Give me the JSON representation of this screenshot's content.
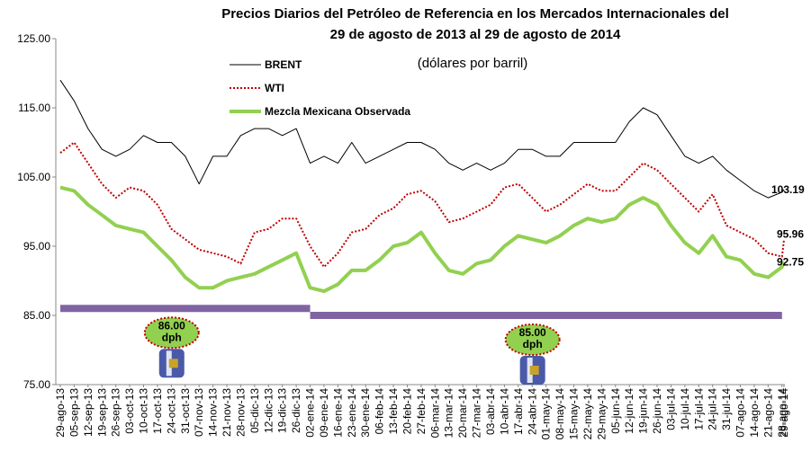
{
  "chart_data": {
    "type": "line",
    "title": [
      "Precios Diarios del Petróleo de Referencia en los Mercados Internacionales del",
      "29 de agosto de 2013 al 29 de agosto de 2014"
    ],
    "subtitle": "(dólares por barril)",
    "x": [
      "29-ago-13",
      "05-sep-13",
      "12-sep-13",
      "19-sep-13",
      "26-sep-13",
      "03-oct-13",
      "10-oct-13",
      "17-oct-13",
      "24-oct-13",
      "31-oct-13",
      "07-nov-13",
      "14-nov-13",
      "21-nov-13",
      "28-nov-13",
      "05-dic-13",
      "12-dic-13",
      "19-dic-13",
      "26-dic-13",
      "02-ene-14",
      "09-ene-14",
      "16-ene-14",
      "23-ene-14",
      "30-ene-14",
      "06-feb-14",
      "13-feb-14",
      "20-feb-14",
      "27-feb-14",
      "06-mar-14",
      "13-mar-14",
      "20-mar-14",
      "27-mar-14",
      "03-abr-14",
      "10-abr-14",
      "17-abr-14",
      "24-abr-14",
      "01-may-14",
      "08-may-14",
      "15-may-14",
      "22-may-14",
      "29-may-14",
      "05-jun-14",
      "12-jun-14",
      "19-jun-14",
      "26-jun-14",
      "03-jul-14",
      "10-jul-14",
      "17-jul-14",
      "24-jul-14",
      "31-jul-14",
      "07-ago-14",
      "14-ago-14",
      "21-ago-14",
      "28-ago-14",
      "29-ago-14"
    ],
    "series": [
      {
        "name": "BRENT",
        "color": "#000000",
        "width": 1,
        "dash": false,
        "values": [
          119,
          116,
          112,
          109,
          108,
          109,
          111,
          110,
          110,
          108,
          104,
          108,
          108,
          111,
          112,
          112,
          111,
          112,
          107,
          108,
          107,
          110,
          107,
          108,
          109,
          110,
          110,
          109,
          107,
          106,
          107,
          106,
          107,
          109,
          109,
          108,
          108,
          110,
          110,
          110,
          110,
          113,
          115,
          114,
          111,
          108,
          107,
          108,
          106,
          104.5,
          103,
          102,
          102.8,
          103.19
        ]
      },
      {
        "name": "WTI",
        "color": "#c00000",
        "width": 2,
        "dash": true,
        "values": [
          108.5,
          110,
          107,
          104,
          102,
          103.5,
          103,
          101,
          97.5,
          96,
          94.5,
          94,
          93.5,
          92.5,
          97,
          97.5,
          99,
          99,
          95,
          92,
          94,
          97,
          97.5,
          99.5,
          100.5,
          102.5,
          103,
          101.5,
          98.5,
          99,
          100,
          101,
          103.5,
          104,
          102,
          100,
          101,
          102.5,
          104,
          103,
          103,
          105,
          107,
          106,
          104,
          102,
          100,
          102.5,
          98,
          97,
          96,
          94,
          93.5,
          95.96
        ]
      },
      {
        "name": "Mezcla Mexicana Observada",
        "color": "#92d050",
        "width": 4,
        "dash": false,
        "values": [
          103.5,
          103,
          101,
          99.5,
          98,
          97.5,
          97,
          95,
          93,
          90.5,
          89,
          89,
          90,
          90.5,
          91,
          92,
          93,
          94,
          89,
          88.5,
          89.5,
          91.5,
          91.5,
          93,
          95,
          95.5,
          97,
          94,
          91.5,
          91,
          92.5,
          93,
          95,
          96.5,
          96,
          95.5,
          96.5,
          98,
          99,
          98.5,
          99,
          101,
          102,
          101,
          98,
          95.5,
          94,
          96.5,
          93.5,
          93,
          91,
          90.5,
          92,
          92.75
        ]
      }
    ],
    "reference": {
      "color": "#8064a2",
      "segments": [
        {
          "from": "29-ago-13",
          "to": "02-ene-14",
          "value": 86,
          "label": "86.00 dph"
        },
        {
          "from": "02-ene-14",
          "to": "28-ago-14",
          "value": 85,
          "label": "85.00 dph"
        }
      ]
    },
    "label_last": true,
    "ylim": [
      75,
      125
    ],
    "yticks": [
      {
        "value": 75,
        "label": "75.00"
      },
      {
        "value": 85,
        "label": "85.00"
      },
      {
        "value": 95,
        "label": "95.00"
      },
      {
        "value": 105,
        "label": "105.00"
      },
      {
        "value": 115,
        "label": "115.00"
      },
      {
        "value": 125,
        "label": "125.00"
      }
    ],
    "grid": false
  }
}
